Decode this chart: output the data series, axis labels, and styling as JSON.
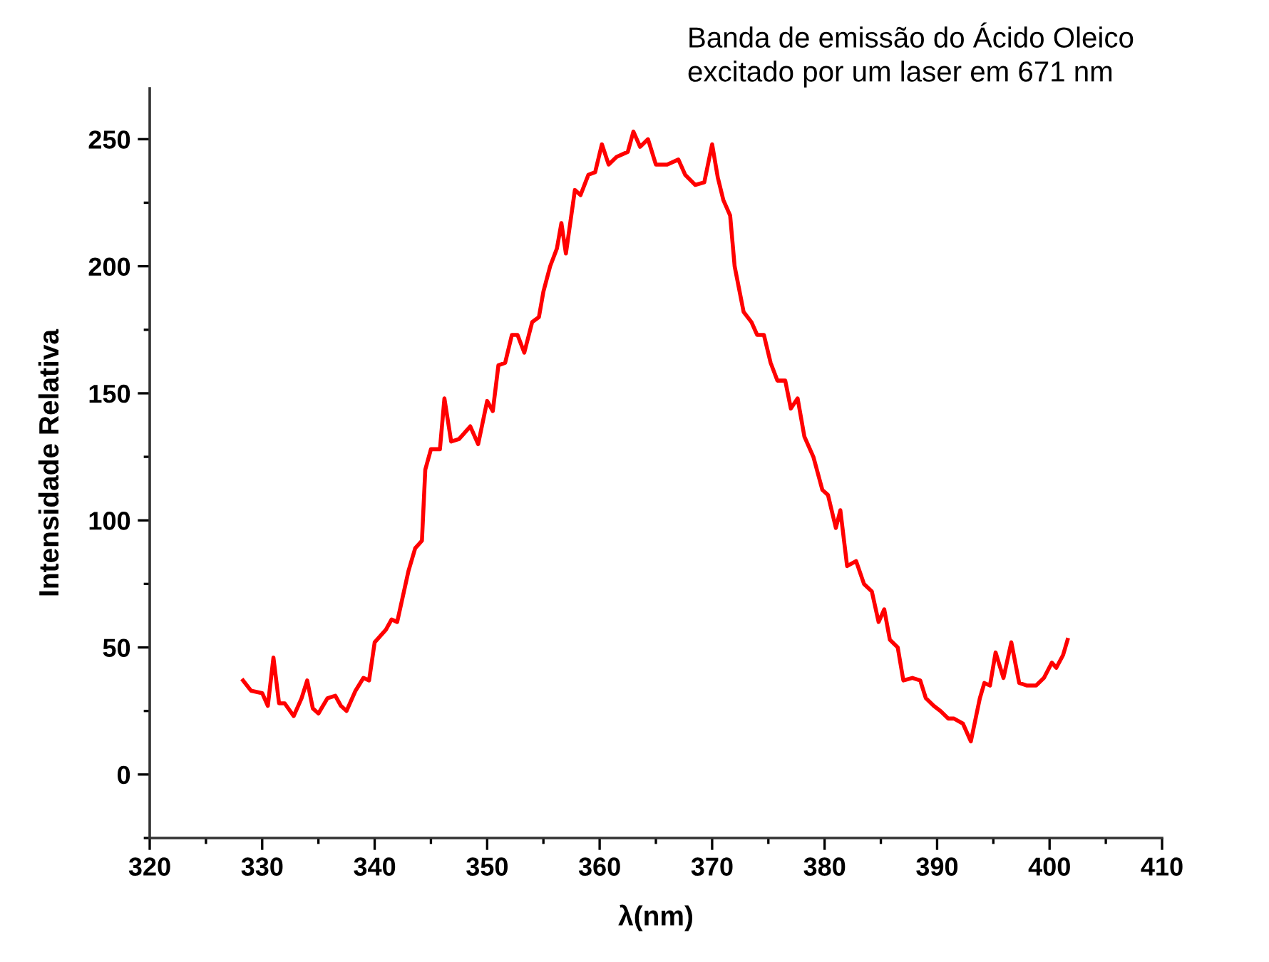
{
  "chart_data": {
    "type": "line",
    "title": "Banda de emissão do Ácido Oleico\nexcitado por um laser em 671 nm",
    "xlabel": "λ(nm)",
    "ylabel": "Intensidade Relativa",
    "xlim": [
      320,
      410
    ],
    "xticks": [
      320,
      330,
      340,
      350,
      360,
      370,
      380,
      390,
      400,
      410
    ],
    "ylim": [
      -25,
      270
    ],
    "yticks": [
      0,
      50,
      100,
      150,
      200,
      250
    ],
    "grid": false,
    "legend": false,
    "marker": "none",
    "line_style": "solid",
    "series": [
      {
        "color": "#ff0000",
        "x": [
          328.3,
          329,
          330,
          330.5,
          331.0,
          331.5,
          332,
          332.8,
          333.5,
          334,
          334.5,
          335,
          335.8,
          336.5,
          337,
          337.5,
          338.3,
          339,
          339.5,
          340,
          341,
          341.5,
          342,
          343,
          343.6,
          344.2,
          344.5,
          345,
          345.8,
          346.2,
          346.8,
          347.5,
          348.5,
          349.2,
          350,
          350.5,
          351,
          351.6,
          352.2,
          352.7,
          353.3,
          354,
          354.6,
          355,
          355.6,
          356.2,
          356.6,
          357,
          357.8,
          358.3,
          359,
          359.6,
          360.2,
          360.8,
          361.5,
          362.5,
          363,
          363.6,
          364.3,
          365,
          366,
          367,
          367.6,
          368.5,
          369.3,
          370,
          370.5,
          371,
          371.6,
          372,
          372.8,
          373.5,
          374,
          374.6,
          375.2,
          375.8,
          376.5,
          377,
          377.6,
          378.2,
          379,
          379.8,
          380.3,
          381,
          381.4,
          382,
          382.8,
          383.5,
          384.2,
          384.8,
          385.3,
          385.8,
          386.5,
          387,
          387.8,
          388.5,
          389,
          389.7,
          390.3,
          391,
          391.5,
          392.3,
          393,
          393.8,
          394.2,
          394.7,
          395.2,
          395.9,
          396.6,
          397.3,
          398,
          398.8,
          399.5,
          400.2,
          400.6,
          401.2,
          401.6
        ],
        "values": [
          37,
          33,
          32,
          27,
          46,
          28,
          28,
          23,
          30,
          37,
          26,
          24,
          30,
          31,
          27,
          25,
          33,
          38,
          37,
          52,
          57,
          61,
          60,
          80,
          89,
          92,
          120,
          128,
          128,
          148,
          131,
          132,
          137,
          130,
          147,
          143,
          161,
          162,
          173,
          173,
          166,
          178,
          180,
          190,
          200,
          207,
          217,
          205,
          230,
          228,
          236,
          237,
          248,
          240,
          243,
          245,
          253,
          247,
          250,
          240,
          240,
          242,
          236,
          232,
          233,
          248,
          235,
          226,
          220,
          200,
          182,
          178,
          173,
          173,
          162,
          155,
          155,
          144,
          148,
          133,
          125,
          112,
          110,
          97,
          104,
          82,
          84,
          75,
          72,
          60,
          65,
          53,
          50,
          37,
          38,
          37,
          30,
          27,
          25,
          22,
          22,
          20,
          13,
          30,
          36,
          35,
          48,
          38,
          52,
          36,
          35,
          35,
          38,
          44,
          42,
          47,
          53
        ]
      }
    ]
  }
}
